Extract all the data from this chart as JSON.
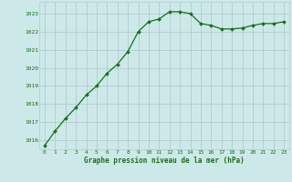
{
  "x": [
    0,
    1,
    2,
    3,
    4,
    5,
    6,
    7,
    8,
    9,
    10,
    11,
    12,
    13,
    14,
    15,
    16,
    17,
    18,
    19,
    20,
    21,
    22,
    23
  ],
  "y": [
    1015.7,
    1016.5,
    1017.2,
    1017.8,
    1018.5,
    1019.0,
    1019.7,
    1020.2,
    1020.9,
    1022.0,
    1022.55,
    1022.7,
    1023.1,
    1023.1,
    1023.0,
    1022.45,
    1022.35,
    1022.15,
    1022.15,
    1022.2,
    1022.35,
    1022.45,
    1022.45,
    1022.55
  ],
  "ylim": [
    1015.5,
    1023.65
  ],
  "yticks": [
    1016,
    1017,
    1018,
    1019,
    1020,
    1021,
    1022,
    1023
  ],
  "xticks": [
    0,
    1,
    2,
    3,
    4,
    5,
    6,
    7,
    8,
    9,
    10,
    11,
    12,
    13,
    14,
    15,
    16,
    17,
    18,
    19,
    20,
    21,
    22,
    23
  ],
  "line_color": "#1a6e1a",
  "marker_color": "#1a6e1a",
  "bg_color": "#cce8e8",
  "grid_major_color": "#b0cccc",
  "grid_minor_color": "#c4dcdc",
  "xlabel": "Graphe pression niveau de la mer (hPa)",
  "xlabel_color": "#1a6e1a",
  "tick_color": "#1a6e1a"
}
